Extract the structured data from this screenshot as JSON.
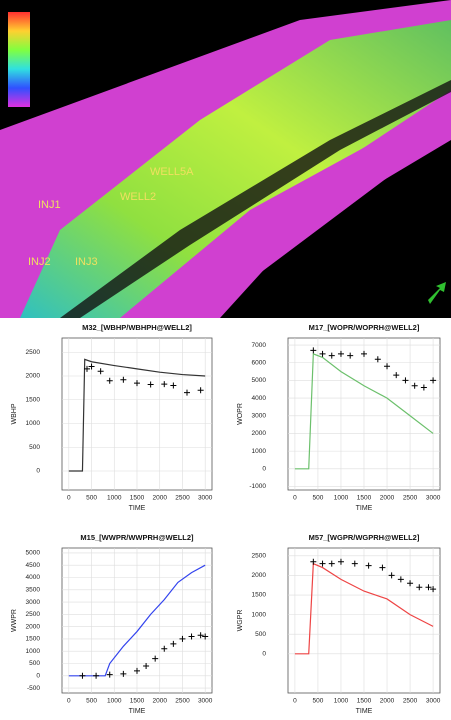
{
  "scene": {
    "labels": [
      "INJ1",
      "INJ2",
      "INJ3",
      "WELL2",
      "WELL5A"
    ]
  },
  "chart_data": [
    {
      "type": "line",
      "title": "M32_[WBHP/WBHPH@WELL2]",
      "xlabel": "TIME",
      "ylabel": "WBHP",
      "xlim": [
        -150,
        3150
      ],
      "xticks": [
        0,
        500,
        1000,
        1500,
        2000,
        2500,
        3000
      ],
      "ylim": [
        -400,
        2800
      ],
      "yticks": [
        0,
        500,
        1000,
        1500,
        2000,
        2500
      ],
      "grid": true,
      "series": [
        {
          "color": "#333333",
          "style": "line",
          "x": [
            0,
            300,
            350,
            500,
            1000,
            1500,
            2000,
            2500,
            3000
          ],
          "values": [
            0,
            0,
            2350,
            2300,
            2220,
            2150,
            2080,
            2030,
            2000
          ]
        },
        {
          "color": "#000000",
          "style": "markers",
          "x": [
            400,
            500,
            700,
            900,
            1200,
            1500,
            1800,
            2100,
            2300,
            2600,
            2900
          ],
          "values": [
            2150,
            2200,
            2100,
            1900,
            1920,
            1850,
            1820,
            1830,
            1800,
            1650,
            1700
          ]
        }
      ]
    },
    {
      "type": "line",
      "title": "M17_[WOPR/WOPRH@WELL2]",
      "xlabel": "TIME",
      "ylabel": "WOPR",
      "xlim": [
        -150,
        3150
      ],
      "xticks": [
        0,
        500,
        1000,
        1500,
        2000,
        2500,
        3000
      ],
      "ylim": [
        -1200,
        7400
      ],
      "yticks": [
        -1000,
        0,
        1000,
        2000,
        3000,
        4000,
        5000,
        6000,
        7000
      ],
      "grid": true,
      "series": [
        {
          "color": "#6cc06c",
          "style": "line",
          "x": [
            0,
            300,
            400,
            600,
            1000,
            1500,
            2000,
            2500,
            3000
          ],
          "values": [
            0,
            0,
            6500,
            6300,
            5500,
            4700,
            4000,
            3000,
            2000
          ]
        },
        {
          "color": "#000000",
          "style": "markers",
          "x": [
            400,
            600,
            800,
            1000,
            1200,
            1500,
            1800,
            2000,
            2200,
            2400,
            2600,
            2800,
            3000
          ],
          "values": [
            6700,
            6500,
            6400,
            6500,
            6400,
            6500,
            6200,
            5800,
            5300,
            5000,
            4700,
            4600,
            5000
          ]
        }
      ]
    },
    {
      "type": "line",
      "title": "M15_[WWPR/WWPRH@WELL2]",
      "xlabel": "TIME",
      "ylabel": "WWPR",
      "xlim": [
        -150,
        3150
      ],
      "xticks": [
        0,
        500,
        1000,
        1500,
        2000,
        2500,
        3000
      ],
      "ylim": [
        -700,
        5200
      ],
      "yticks": [
        -500,
        0,
        500,
        1000,
        1500,
        2000,
        2500,
        3000,
        3500,
        4000,
        4500,
        5000
      ],
      "grid": true,
      "series": [
        {
          "color": "#3344ee",
          "style": "line",
          "x": [
            0,
            800,
            900,
            1200,
            1500,
            1800,
            2100,
            2400,
            2700,
            3000
          ],
          "values": [
            0,
            0,
            500,
            1200,
            1800,
            2500,
            3100,
            3800,
            4200,
            4500
          ]
        },
        {
          "color": "#000000",
          "style": "markers",
          "x": [
            300,
            600,
            900,
            1200,
            1500,
            1700,
            1900,
            2100,
            2300,
            2500,
            2700,
            2900,
            3000
          ],
          "values": [
            0,
            0,
            50,
            80,
            200,
            400,
            700,
            1100,
            1300,
            1500,
            1600,
            1650,
            1600
          ]
        }
      ]
    },
    {
      "type": "line",
      "title": "M57_[WGPR/WGPRH@WELL2]",
      "xlabel": "TIME",
      "ylabel": "WGPR",
      "xlim": [
        -150,
        3150
      ],
      "xticks": [
        0,
        500,
        1000,
        1500,
        2000,
        2500,
        3000
      ],
      "ylim": [
        -1000,
        2700
      ],
      "yticks": [
        0,
        500,
        1000,
        1500,
        2000,
        2500
      ],
      "grid": true,
      "series": [
        {
          "color": "#ee4444",
          "style": "line",
          "x": [
            0,
            300,
            400,
            600,
            1000,
            1500,
            2000,
            2500,
            3000
          ],
          "values": [
            0,
            0,
            2300,
            2200,
            1900,
            1600,
            1400,
            1000,
            700
          ]
        },
        {
          "color": "#000000",
          "style": "markers",
          "x": [
            400,
            600,
            800,
            1000,
            1300,
            1600,
            1900,
            2100,
            2300,
            2500,
            2700,
            2900,
            3000
          ],
          "values": [
            2350,
            2300,
            2300,
            2350,
            2300,
            2250,
            2200,
            2000,
            1900,
            1800,
            1700,
            1700,
            1650
          ]
        }
      ]
    }
  ]
}
